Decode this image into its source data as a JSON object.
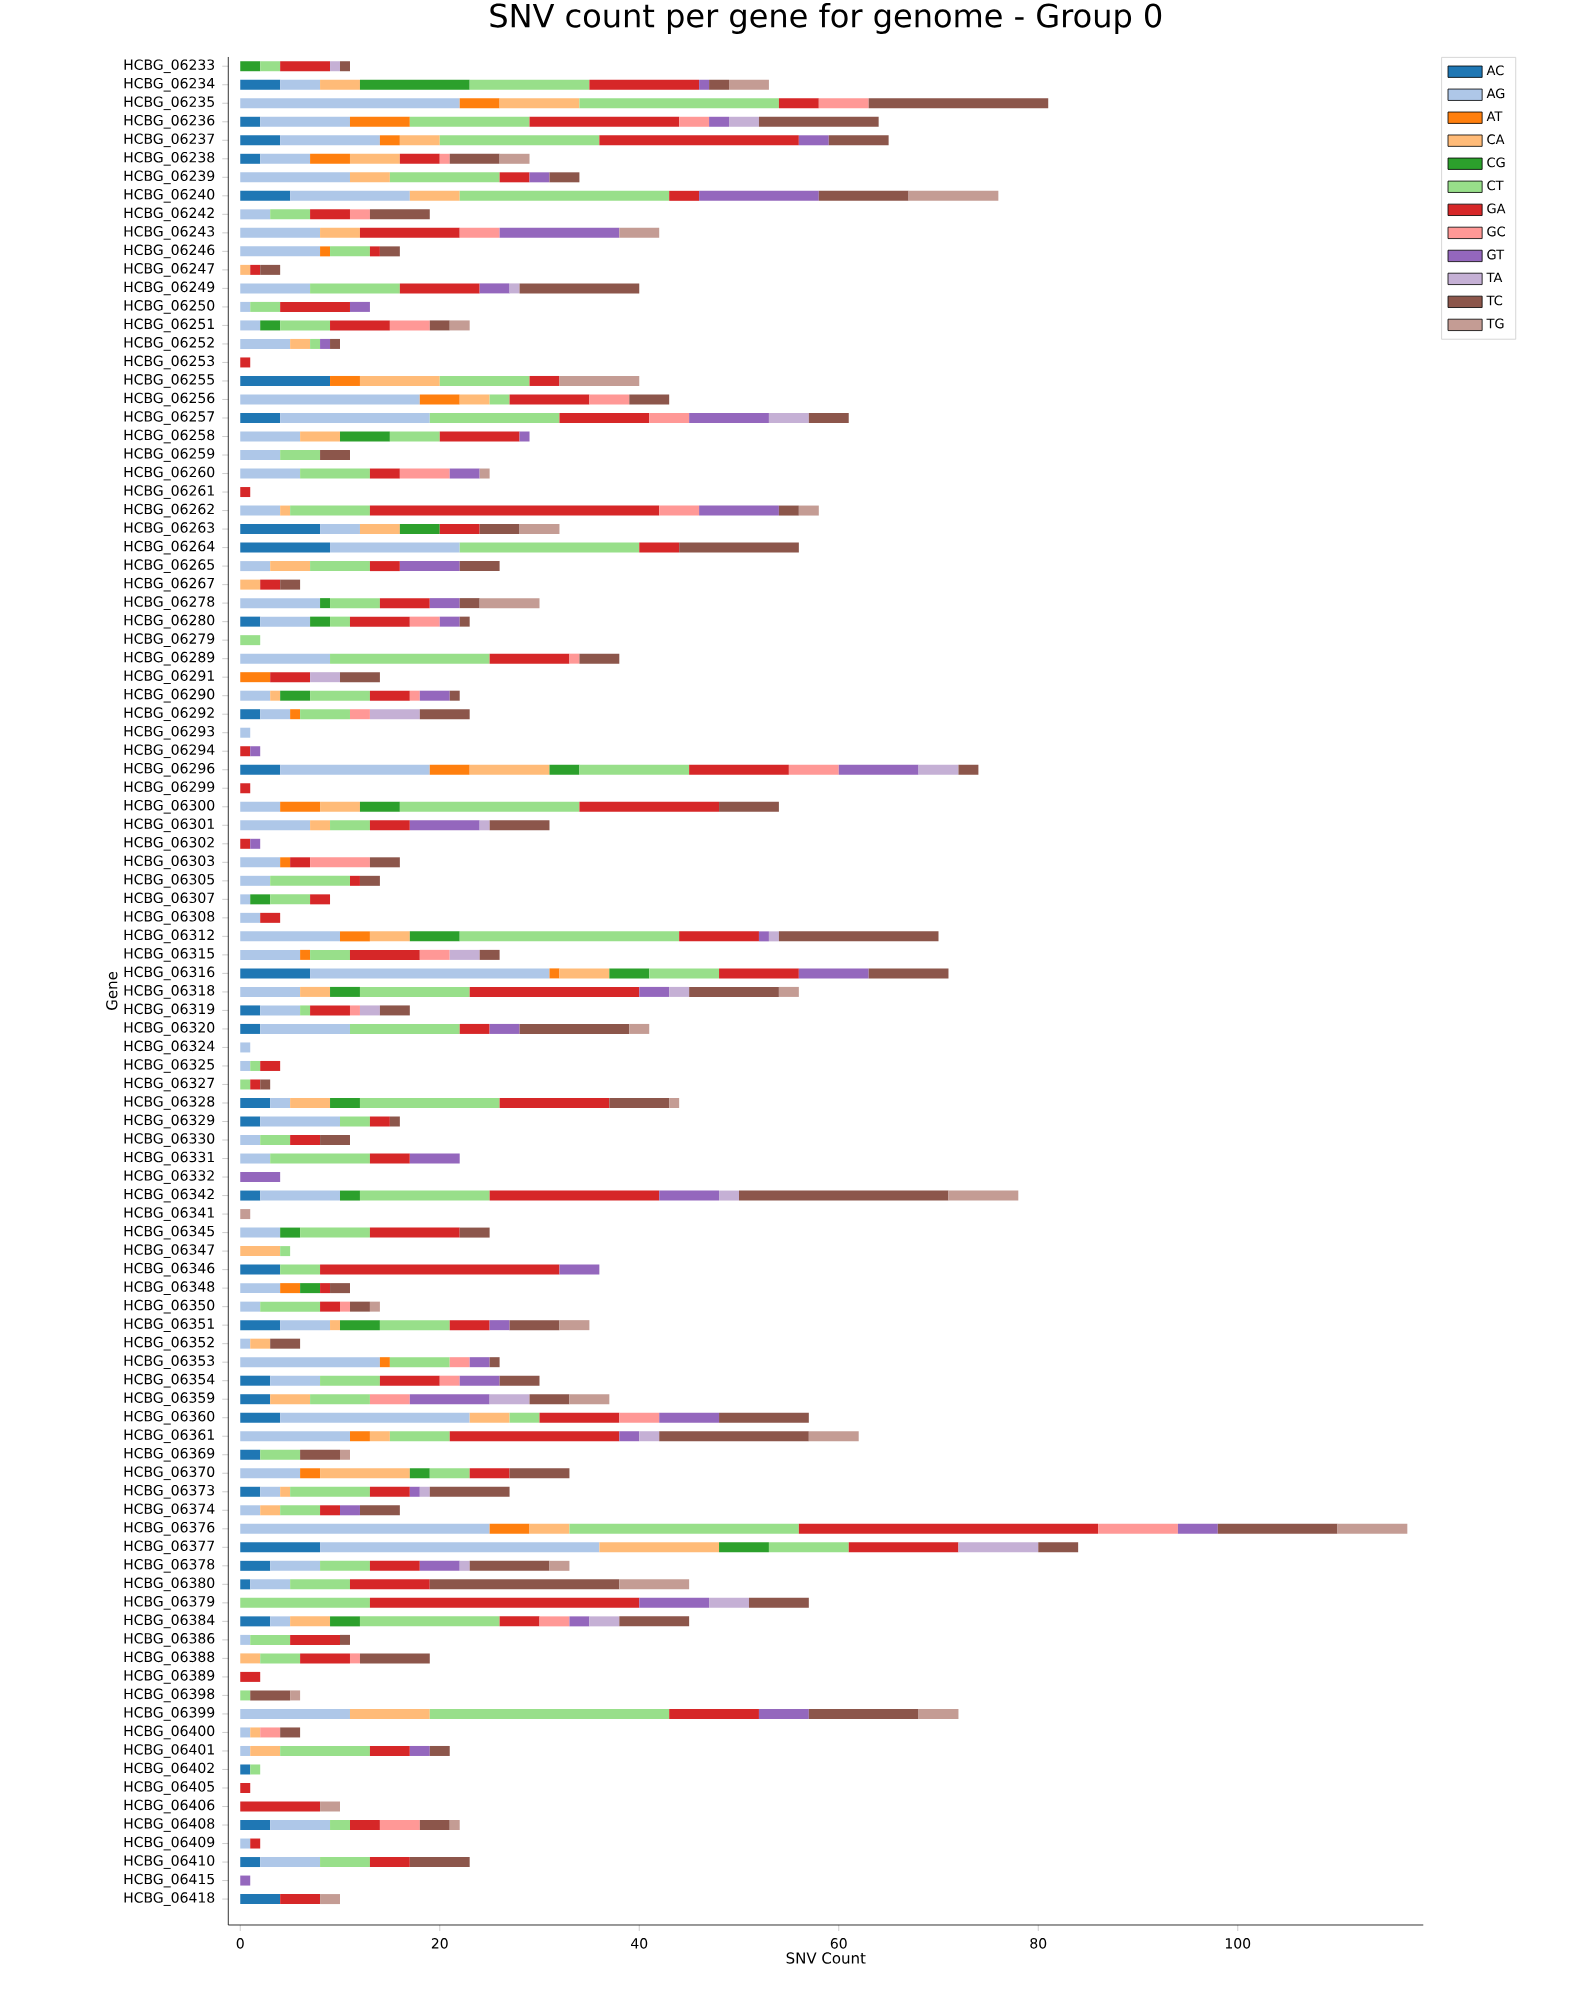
{
  "chart_data": {
    "type": "bar",
    "orientation": "horizontal",
    "stacked": true,
    "title": "SNV count per gene for genome - Group 0",
    "xlabel": "SNV Count",
    "ylabel": "Gene",
    "categories": [
      "HCBG_06233",
      "HCBG_06234",
      "HCBG_06235",
      "HCBG_06236",
      "HCBG_06237",
      "HCBG_06238",
      "HCBG_06239",
      "HCBG_06240",
      "HCBG_06242",
      "HCBG_06243",
      "HCBG_06246",
      "HCBG_06247",
      "HCBG_06249",
      "HCBG_06250",
      "HCBG_06251",
      "HCBG_06252",
      "HCBG_06253",
      "HCBG_06255",
      "HCBG_06256",
      "HCBG_06257",
      "HCBG_06258",
      "HCBG_06259",
      "HCBG_06260",
      "HCBG_06261",
      "HCBG_06262",
      "HCBG_06263",
      "HCBG_06264",
      "HCBG_06265",
      "HCBG_06267",
      "HCBG_06278",
      "HCBG_06280",
      "HCBG_06279",
      "HCBG_06289",
      "HCBG_06291",
      "HCBG_06290",
      "HCBG_06292",
      "HCBG_06293",
      "HCBG_06294",
      "HCBG_06296",
      "HCBG_06299",
      "HCBG_06300",
      "HCBG_06301",
      "HCBG_06302",
      "HCBG_06303",
      "HCBG_06305",
      "HCBG_06307",
      "HCBG_06308",
      "HCBG_06312",
      "HCBG_06315",
      "HCBG_06316",
      "HCBG_06318",
      "HCBG_06319",
      "HCBG_06320",
      "HCBG_06324",
      "HCBG_06325",
      "HCBG_06327",
      "HCBG_06328",
      "HCBG_06329",
      "HCBG_06330",
      "HCBG_06331",
      "HCBG_06332",
      "HCBG_06342",
      "HCBG_06341",
      "HCBG_06345",
      "HCBG_06347",
      "HCBG_06346",
      "HCBG_06348",
      "HCBG_06350",
      "HCBG_06351",
      "HCBG_06352",
      "HCBG_06353",
      "HCBG_06354",
      "HCBG_06359",
      "HCBG_06360",
      "HCBG_06361",
      "HCBG_06369",
      "HCBG_06370",
      "HCBG_06373",
      "HCBG_06374",
      "HCBG_06376",
      "HCBG_06377",
      "HCBG_06378",
      "HCBG_06380",
      "HCBG_06379",
      "HCBG_06384",
      "HCBG_06386",
      "HCBG_06388",
      "HCBG_06389",
      "HCBG_06398",
      "HCBG_06399",
      "HCBG_06400",
      "HCBG_06401",
      "HCBG_06402",
      "HCBG_06405",
      "HCBG_06406",
      "HCBG_06408",
      "HCBG_06409",
      "HCBG_06410",
      "HCBG_06415",
      "HCBG_06418"
    ],
    "xlim": [
      -1.2,
      118.6
    ],
    "xticks": [
      0,
      20,
      40,
      60,
      80,
      100
    ],
    "legend": "top right",
    "series": [
      {
        "name": "AC",
        "color": "#1f77b4",
        "values": [
          null,
          4,
          null,
          2,
          4,
          2,
          null,
          5,
          null,
          null,
          null,
          null,
          null,
          null,
          null,
          null,
          null,
          9,
          null,
          4,
          null,
          null,
          null,
          null,
          null,
          8,
          9,
          null,
          null,
          null,
          2,
          null,
          null,
          null,
          null,
          2,
          null,
          null,
          4,
          null,
          null,
          null,
          null,
          null,
          null,
          null,
          null,
          null,
          null,
          7,
          null,
          2,
          2,
          null,
          null,
          null,
          3,
          2,
          null,
          null,
          null,
          2,
          null,
          null,
          null,
          4,
          null,
          null,
          4,
          null,
          null,
          3,
          3,
          4,
          null,
          2,
          null,
          2,
          null,
          null,
          8,
          3,
          1,
          null,
          3,
          null,
          null,
          null,
          null,
          null,
          null,
          null,
          1,
          null,
          null,
          3,
          null,
          2,
          null,
          4
        ]
      },
      {
        "name": "AG",
        "color": "#aec7e8",
        "values": [
          null,
          4,
          22,
          9,
          10,
          5,
          11,
          12,
          3,
          8,
          8,
          null,
          7,
          1,
          2,
          5,
          null,
          null,
          18,
          15,
          6,
          4,
          6,
          null,
          4,
          4,
          13,
          3,
          null,
          8,
          5,
          null,
          9,
          null,
          3,
          3,
          1,
          null,
          15,
          null,
          4,
          7,
          null,
          4,
          3,
          1,
          2,
          10,
          6,
          24,
          6,
          4,
          9,
          1,
          1,
          null,
          2,
          8,
          2,
          3,
          null,
          8,
          null,
          4,
          null,
          null,
          4,
          2,
          5,
          1,
          14,
          5,
          null,
          19,
          11,
          null,
          6,
          2,
          2,
          25,
          28,
          5,
          4,
          null,
          2,
          1,
          null,
          null,
          null,
          11,
          1,
          1,
          null,
          null,
          null,
          6,
          1,
          6,
          null,
          null
        ]
      },
      {
        "name": "AT",
        "color": "#ff7f0e",
        "values": [
          null,
          null,
          4,
          6,
          2,
          4,
          null,
          null,
          null,
          null,
          1,
          null,
          null,
          null,
          null,
          null,
          null,
          3,
          4,
          null,
          null,
          null,
          null,
          null,
          null,
          null,
          null,
          null,
          null,
          null,
          null,
          null,
          null,
          3,
          null,
          1,
          null,
          null,
          4,
          null,
          4,
          null,
          null,
          1,
          null,
          null,
          null,
          3,
          1,
          1,
          null,
          null,
          null,
          null,
          null,
          null,
          null,
          null,
          null,
          null,
          null,
          null,
          null,
          null,
          null,
          null,
          2,
          null,
          null,
          null,
          1,
          null,
          null,
          null,
          2,
          null,
          2,
          null,
          null,
          4,
          null,
          null,
          null,
          null,
          null,
          null,
          null,
          null,
          null,
          null,
          null,
          null,
          null,
          null,
          null,
          null,
          null,
          null,
          null,
          null
        ]
      },
      {
        "name": "CA",
        "color": "#ffbb78",
        "values": [
          null,
          4,
          8,
          null,
          4,
          5,
          4,
          5,
          null,
          4,
          null,
          1,
          null,
          null,
          null,
          2,
          null,
          8,
          3,
          null,
          4,
          null,
          null,
          null,
          1,
          4,
          null,
          4,
          2,
          null,
          null,
          null,
          null,
          null,
          1,
          null,
          null,
          null,
          8,
          null,
          4,
          2,
          null,
          null,
          null,
          null,
          null,
          4,
          null,
          5,
          3,
          null,
          null,
          null,
          null,
          null,
          4,
          null,
          null,
          null,
          null,
          null,
          null,
          null,
          4,
          null,
          null,
          null,
          1,
          2,
          null,
          null,
          4,
          4,
          2,
          null,
          9,
          1,
          2,
          4,
          12,
          null,
          null,
          null,
          4,
          null,
          2,
          null,
          null,
          8,
          1,
          3,
          null,
          null,
          null,
          null,
          null,
          null,
          null,
          null
        ]
      },
      {
        "name": "CG",
        "color": "#2ca02c",
        "values": [
          2,
          11,
          null,
          null,
          null,
          null,
          null,
          null,
          null,
          null,
          null,
          null,
          null,
          null,
          2,
          null,
          null,
          null,
          null,
          null,
          5,
          null,
          null,
          null,
          null,
          4,
          null,
          null,
          null,
          1,
          2,
          null,
          null,
          null,
          3,
          null,
          null,
          null,
          3,
          null,
          4,
          null,
          null,
          null,
          null,
          2,
          null,
          5,
          null,
          4,
          3,
          null,
          null,
          null,
          null,
          null,
          3,
          null,
          null,
          null,
          null,
          2,
          null,
          2,
          null,
          null,
          2,
          null,
          4,
          null,
          null,
          null,
          null,
          null,
          null,
          null,
          2,
          null,
          null,
          null,
          5,
          null,
          null,
          null,
          3,
          null,
          null,
          null,
          null,
          null,
          null,
          null,
          null,
          null,
          null,
          null,
          null,
          null,
          null,
          null
        ]
      },
      {
        "name": "CT",
        "color": "#98df8a",
        "values": [
          2,
          12,
          20,
          12,
          16,
          null,
          11,
          21,
          4,
          null,
          4,
          null,
          9,
          3,
          5,
          1,
          null,
          9,
          2,
          13,
          5,
          4,
          7,
          null,
          8,
          null,
          18,
          6,
          null,
          5,
          2,
          2,
          16,
          null,
          6,
          5,
          null,
          null,
          11,
          null,
          18,
          4,
          null,
          null,
          8,
          4,
          null,
          22,
          4,
          7,
          11,
          1,
          11,
          null,
          1,
          1,
          14,
          3,
          3,
          10,
          null,
          13,
          null,
          7,
          1,
          4,
          null,
          6,
          7,
          null,
          6,
          6,
          6,
          3,
          6,
          4,
          4,
          8,
          4,
          23,
          8,
          5,
          6,
          13,
          14,
          4,
          4,
          null,
          1,
          24,
          null,
          9,
          1,
          null,
          null,
          2,
          null,
          5,
          null,
          null
        ]
      },
      {
        "name": "GA",
        "color": "#d62728",
        "values": [
          5,
          11,
          4,
          15,
          20,
          4,
          3,
          3,
          4,
          10,
          1,
          1,
          8,
          7,
          6,
          null,
          1,
          3,
          8,
          9,
          8,
          null,
          3,
          1,
          29,
          4,
          4,
          3,
          2,
          5,
          6,
          null,
          8,
          4,
          4,
          null,
          null,
          1,
          10,
          1,
          14,
          4,
          1,
          2,
          1,
          2,
          2,
          8,
          7,
          8,
          17,
          4,
          3,
          null,
          2,
          1,
          11,
          2,
          3,
          4,
          null,
          17,
          null,
          9,
          null,
          24,
          1,
          2,
          4,
          null,
          null,
          6,
          null,
          8,
          17,
          null,
          4,
          4,
          2,
          30,
          11,
          5,
          8,
          27,
          4,
          5,
          5,
          2,
          null,
          9,
          null,
          4,
          null,
          1,
          8,
          3,
          1,
          4,
          null,
          4
        ]
      },
      {
        "name": "GC",
        "color": "#ff9896",
        "values": [
          null,
          null,
          5,
          3,
          null,
          1,
          null,
          null,
          2,
          4,
          null,
          null,
          null,
          null,
          4,
          null,
          null,
          null,
          4,
          4,
          null,
          null,
          5,
          null,
          4,
          null,
          null,
          null,
          null,
          null,
          3,
          null,
          1,
          null,
          1,
          2,
          null,
          null,
          5,
          null,
          null,
          null,
          null,
          6,
          null,
          null,
          null,
          null,
          3,
          null,
          null,
          1,
          null,
          null,
          null,
          null,
          null,
          null,
          null,
          null,
          null,
          null,
          null,
          null,
          null,
          null,
          null,
          1,
          null,
          null,
          2,
          2,
          4,
          4,
          null,
          null,
          null,
          null,
          null,
          8,
          null,
          null,
          null,
          null,
          3,
          null,
          1,
          null,
          null,
          null,
          2,
          null,
          null,
          null,
          null,
          4,
          null,
          null,
          null,
          null
        ]
      },
      {
        "name": "GT",
        "color": "#9467bd",
        "values": [
          null,
          1,
          null,
          2,
          3,
          null,
          2,
          12,
          null,
          12,
          null,
          null,
          3,
          2,
          null,
          1,
          null,
          null,
          null,
          8,
          1,
          null,
          3,
          null,
          8,
          null,
          null,
          6,
          null,
          3,
          2,
          null,
          null,
          null,
          3,
          null,
          null,
          1,
          8,
          null,
          null,
          7,
          1,
          null,
          null,
          null,
          null,
          1,
          null,
          7,
          3,
          null,
          3,
          null,
          null,
          null,
          null,
          null,
          null,
          5,
          4,
          6,
          null,
          null,
          null,
          4,
          null,
          null,
          2,
          null,
          2,
          4,
          8,
          6,
          2,
          null,
          null,
          1,
          2,
          4,
          null,
          4,
          null,
          7,
          2,
          null,
          null,
          null,
          null,
          5,
          null,
          2,
          null,
          null,
          null,
          null,
          null,
          null,
          1,
          null
        ]
      },
      {
        "name": "TA",
        "color": "#c5b0d5",
        "values": [
          1,
          null,
          null,
          3,
          null,
          null,
          null,
          null,
          null,
          null,
          null,
          null,
          1,
          null,
          null,
          null,
          null,
          null,
          null,
          4,
          null,
          null,
          null,
          null,
          null,
          null,
          null,
          null,
          null,
          null,
          null,
          null,
          null,
          3,
          null,
          5,
          null,
          null,
          4,
          null,
          null,
          1,
          null,
          null,
          null,
          null,
          null,
          1,
          3,
          null,
          2,
          2,
          null,
          null,
          null,
          null,
          null,
          null,
          null,
          null,
          null,
          2,
          null,
          null,
          null,
          null,
          null,
          null,
          null,
          null,
          null,
          null,
          4,
          null,
          2,
          null,
          null,
          1,
          null,
          null,
          8,
          1,
          null,
          4,
          3,
          null,
          null,
          null,
          null,
          null,
          null,
          null,
          null,
          null,
          null,
          null,
          null,
          null,
          null,
          null
        ]
      },
      {
        "name": "TC",
        "color": "#8c564b",
        "values": [
          1,
          2,
          18,
          12,
          6,
          5,
          3,
          9,
          6,
          null,
          2,
          2,
          12,
          null,
          2,
          1,
          null,
          null,
          4,
          4,
          null,
          3,
          null,
          null,
          2,
          4,
          12,
          4,
          2,
          2,
          1,
          null,
          4,
          4,
          1,
          5,
          null,
          null,
          2,
          null,
          6,
          6,
          null,
          3,
          2,
          null,
          null,
          16,
          2,
          8,
          9,
          3,
          11,
          null,
          null,
          1,
          6,
          1,
          3,
          null,
          null,
          21,
          null,
          3,
          null,
          null,
          2,
          2,
          5,
          3,
          1,
          4,
          4,
          9,
          15,
          4,
          6,
          8,
          4,
          12,
          4,
          8,
          19,
          6,
          7,
          1,
          7,
          null,
          4,
          11,
          2,
          2,
          null,
          null,
          null,
          3,
          null,
          6,
          null,
          null
        ]
      },
      {
        "name": "TG",
        "color": "#c49c94",
        "values": [
          null,
          4,
          null,
          null,
          null,
          3,
          null,
          9,
          null,
          4,
          null,
          null,
          null,
          null,
          2,
          null,
          null,
          8,
          null,
          null,
          null,
          null,
          1,
          null,
          2,
          4,
          null,
          null,
          null,
          6,
          null,
          null,
          null,
          null,
          null,
          null,
          null,
          null,
          null,
          null,
          null,
          null,
          null,
          null,
          null,
          null,
          null,
          null,
          null,
          null,
          2,
          null,
          2,
          null,
          null,
          null,
          1,
          null,
          null,
          null,
          null,
          7,
          1,
          null,
          null,
          null,
          null,
          1,
          3,
          null,
          null,
          null,
          4,
          null,
          5,
          1,
          null,
          null,
          null,
          7,
          null,
          2,
          7,
          null,
          null,
          null,
          null,
          null,
          1,
          4,
          null,
          null,
          null,
          null,
          2,
          1,
          null,
          null,
          null,
          2
        ]
      }
    ]
  }
}
